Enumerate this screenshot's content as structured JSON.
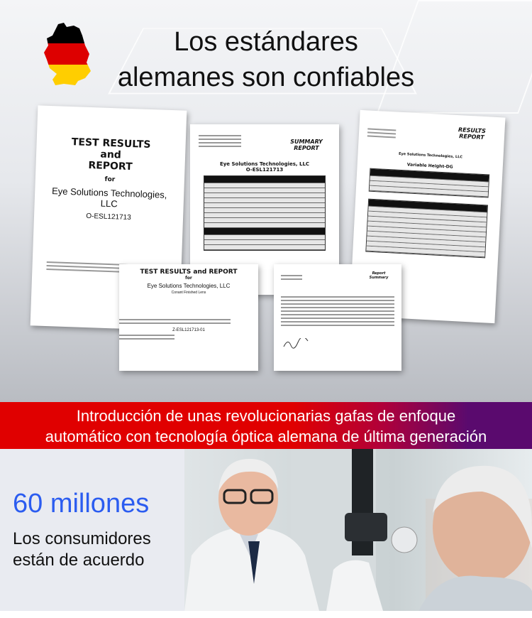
{
  "header": {
    "title_line1": "Los estándares",
    "title_line2": "alemanes son confiables",
    "flag_colors": [
      "#000000",
      "#dd0000",
      "#ffce00"
    ]
  },
  "documents": [
    {
      "title1": "TEST RESULTS",
      "title2": "and",
      "title3": "REPORT",
      "for": "for",
      "company": "Eye Solutions Technologies,",
      "company2": "LLC",
      "code": "O-ESL121713"
    },
    {
      "heading": "SUMMARY REPORT",
      "company": "Eye Solutions Technologies, LLC",
      "code": "O-ESL121713"
    },
    {
      "heading": "RESULTS REPORT",
      "company": "Eye Solutions Technologies, LLC",
      "subtitle": "Variable Height-DG"
    },
    {
      "title": "TEST RESULTS and REPORT",
      "for": "for",
      "company": "Eye Solutions Technologies, LLC",
      "product": "Conant Finished Lens",
      "code": "Z-ESL121713-01"
    },
    {
      "heading": "Report Summary"
    }
  ],
  "banner": {
    "line1": "Introducción de unas revolucionarias gafas de enfoque",
    "line2": "automático con tecnología óptica alemana de última generación"
  },
  "stats": {
    "number": "60 millones",
    "caption_line1": "Los consumidores",
    "caption_line2": "están de acuerdo",
    "accent": "#2b5cf0"
  }
}
